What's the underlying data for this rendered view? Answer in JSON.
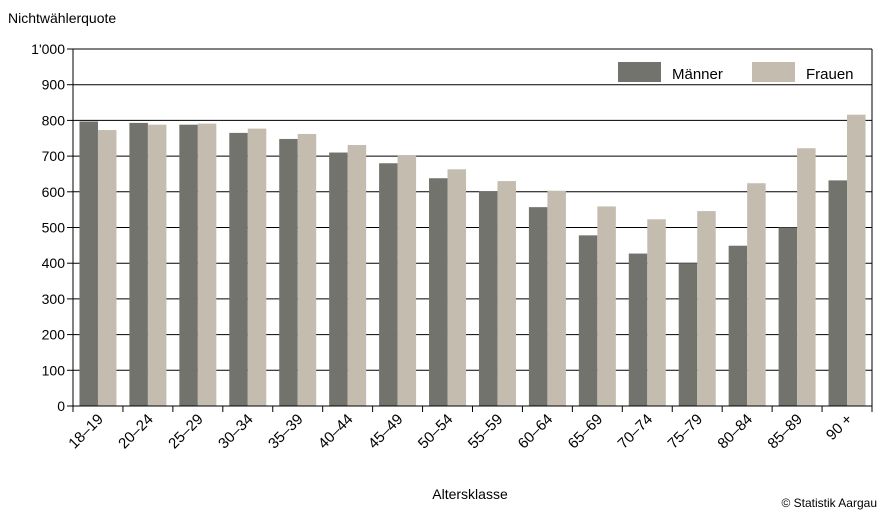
{
  "chart_data": {
    "type": "bar",
    "title": "",
    "ylabel": "Nichtwählerquote",
    "xlabel": "Altersklasse",
    "ylim": [
      0,
      1000
    ],
    "yticks": [
      "0",
      "100",
      "200",
      "300",
      "400",
      "500",
      "600",
      "700",
      "800",
      "900",
      "1'000"
    ],
    "grid": true,
    "legend": "top-right",
    "categories": [
      "18–19",
      "20–24",
      "25–29",
      "30–34",
      "35–39",
      "40–44",
      "45–49",
      "50–54",
      "55–59",
      "60–64",
      "65–69",
      "70–74",
      "75–79",
      "80–84",
      "85–89",
      "90 +"
    ],
    "series": [
      {
        "name": "Männer",
        "color": "#72736d",
        "values": [
          797,
          793,
          788,
          765,
          748,
          710,
          680,
          638,
          601,
          557,
          478,
          427,
          400,
          449,
          500,
          632
        ]
      },
      {
        "name": "Frauen",
        "color": "#c3bcaf",
        "values": [
          773,
          788,
          791,
          777,
          762,
          731,
          701,
          663,
          630,
          603,
          559,
          523,
          546,
          624,
          722,
          816
        ]
      }
    ]
  },
  "credit": "© Statistik Aargau"
}
